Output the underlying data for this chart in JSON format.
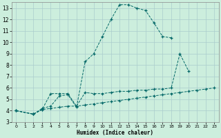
{
  "xlabel": "Humidex (Indice chaleur)",
  "bg_color": "#cceedd",
  "grid_color": "#aacccc",
  "line_color": "#006666",
  "xlim": [
    -0.5,
    23.5
  ],
  "ylim": [
    3,
    13.5
  ],
  "xticks": [
    0,
    1,
    2,
    3,
    4,
    5,
    6,
    7,
    8,
    9,
    10,
    11,
    12,
    13,
    14,
    15,
    16,
    17,
    18,
    19,
    20,
    21,
    22,
    23
  ],
  "yticks": [
    3,
    4,
    5,
    6,
    7,
    8,
    9,
    10,
    11,
    12,
    13
  ],
  "lines": [
    {
      "x": [
        0,
        2,
        3,
        4,
        5,
        6,
        7,
        8,
        9,
        10,
        11,
        12,
        13,
        14,
        15,
        16,
        17,
        18
      ],
      "y": [
        4,
        3.7,
        4.2,
        4.4,
        5.3,
        5.4,
        4.3,
        8.3,
        9.0,
        10.5,
        12.0,
        13.3,
        13.3,
        13.0,
        12.8,
        11.7,
        10.5,
        10.4
      ]
    },
    {
      "x": [
        0,
        2,
        3,
        4,
        5,
        6,
        7,
        8,
        9,
        10,
        11,
        12,
        13,
        14,
        15,
        16,
        17,
        18,
        19,
        20
      ],
      "y": [
        4,
        3.7,
        4.1,
        5.5,
        5.5,
        5.5,
        4.4,
        5.6,
        5.5,
        5.5,
        5.6,
        5.7,
        5.7,
        5.8,
        5.8,
        5.9,
        5.9,
        6.0,
        9.0,
        7.5
      ]
    },
    {
      "x": [
        0,
        2,
        3,
        4,
        5,
        6,
        7,
        8,
        9,
        10,
        11,
        12,
        13,
        14,
        15,
        16,
        17,
        18,
        19,
        20,
        21,
        22,
        23
      ],
      "y": [
        4,
        3.7,
        4.1,
        4.2,
        4.3,
        4.4,
        4.4,
        4.5,
        4.6,
        4.7,
        4.8,
        4.9,
        5.0,
        5.1,
        5.2,
        5.3,
        5.4,
        5.5,
        5.6,
        5.7,
        5.8,
        5.9,
        6.0
      ]
    }
  ]
}
